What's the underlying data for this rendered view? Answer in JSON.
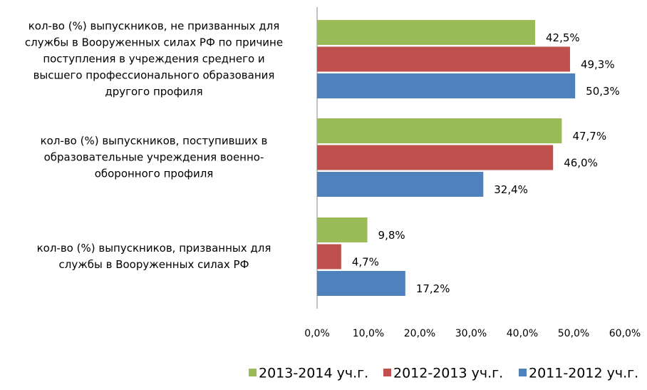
{
  "chart_data": {
    "type": "hbar",
    "categories": [
      "кол-во  (%) выпускников, не призванных для\nслужбы в Вооруженных силах РФ по причине\nпоступления в учреждения среднего и\nвысшего профессионального образования\nдругого профиля",
      "кол-во  (%) выпускников, поступивших в\nобразовательные учреждения военно-\nоборонного профиля",
      "кол-во (%) выпускников, призванных для\nслужбы в Вооруженных силах РФ"
    ],
    "series": [
      {
        "name": "2013-2014 уч.г.",
        "color": "#9bbb59",
        "values": [
          42.5,
          47.7,
          9.8
        ],
        "value_labels": [
          "42,5%",
          "47,7%",
          "9,8%"
        ]
      },
      {
        "name": "2012-2013 уч.г.",
        "color": "#c0504d",
        "values": [
          49.3,
          46.0,
          4.7
        ],
        "value_labels": [
          "49,3%",
          "46,0%",
          "4,7%"
        ]
      },
      {
        "name": "2011-2012 уч.г.",
        "color": "#4f81bd",
        "values": [
          50.3,
          32.4,
          17.2
        ],
        "value_labels": [
          "50,3%",
          "32,4%",
          "17,2%"
        ]
      }
    ],
    "xlim": [
      0,
      60
    ],
    "xticks": [
      {
        "value": 0,
        "label": "0,0%"
      },
      {
        "value": 10,
        "label": "10,0%"
      },
      {
        "value": 20,
        "label": "20,0%"
      },
      {
        "value": 30,
        "label": "30,0%"
      },
      {
        "value": 40,
        "label": "40,0%"
      },
      {
        "value": 50,
        "label": "50,0%"
      },
      {
        "value": 60,
        "label": "60,0%"
      }
    ],
    "legend": "bottom"
  }
}
